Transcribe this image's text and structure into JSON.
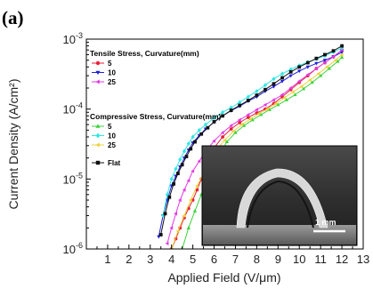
{
  "panel_label": "(a)",
  "inset": {
    "scale_bar_label": "1 mm"
  },
  "chart_data": {
    "type": "scatter",
    "xlabel": "Applied Field (V/μm)",
    "ylabel": "Current Density (A/cm²)",
    "xlim": [
      0,
      13
    ],
    "ylim_log10": [
      -6,
      -3
    ],
    "y_scale": "log",
    "x_ticks": [
      "1",
      "2",
      "3",
      "4",
      "5",
      "6",
      "7",
      "8",
      "9",
      "10",
      "11",
      "12",
      "13"
    ],
    "y_ticks": [
      {
        "base": "10",
        "exp": "-3",
        "log": -3
      },
      {
        "base": "10",
        "exp": "-4",
        "log": -4
      },
      {
        "base": "10",
        "exp": "-5",
        "log": -5
      },
      {
        "base": "10",
        "exp": "-6",
        "log": -6
      }
    ],
    "legend_groups": [
      {
        "title": "Tensile Stress, Curvature(mm)",
        "series_index": [
          0,
          1,
          2
        ]
      },
      {
        "title": "Compressive Stress, Curvature(mm)",
        "series_index": [
          3,
          4,
          5
        ]
      },
      {
        "title": "",
        "series_index": [
          6
        ]
      }
    ],
    "series": [
      {
        "name": "5",
        "color": "#e8203b",
        "marker": "circle",
        "x": [
          4.0,
          4.2,
          4.4,
          4.6,
          4.8,
          5.0,
          5.2,
          5.4,
          5.6,
          5.8,
          6.0,
          6.4,
          6.8,
          7.2,
          7.6,
          8.0,
          8.4,
          8.8,
          9.2,
          9.6,
          10.0,
          10.4,
          10.8,
          11.2,
          11.6,
          12.0
        ],
        "y": [
          1e-06,
          1.4e-06,
          2e-06,
          2.8e-06,
          3.8e-06,
          5e-06,
          7e-06,
          1e-05,
          1.4e-05,
          2e-05,
          2.8e-05,
          4e-05,
          5.2e-05,
          6.4e-05,
          7.6e-05,
          8.8e-05,
          0.0001,
          0.00012,
          0.00015,
          0.00019,
          0.00024,
          0.0003,
          0.00038,
          0.00046,
          0.00056,
          0.0007
        ]
      },
      {
        "name": "10",
        "color": "#1f1fdc",
        "marker": "triangle-down",
        "x": [
          3.4,
          3.6,
          3.8,
          4.0,
          4.2,
          4.4,
          4.6,
          4.8,
          5.0,
          5.3,
          5.6,
          6.0,
          6.4,
          6.8,
          7.2,
          7.6,
          8.0,
          8.4,
          8.8,
          9.2,
          9.6,
          10.0,
          10.4,
          10.8,
          11.2,
          11.6,
          12.0
        ],
        "y": [
          1.5e-06,
          3e-06,
          5e-06,
          8e-06,
          1.1e-05,
          1.5e-05,
          2e-05,
          2.6e-05,
          3.3e-05,
          4.2e-05,
          5.2e-05,
          6.5e-05,
          8e-05,
          9.5e-05,
          0.00011,
          0.00013,
          0.00015,
          0.00018,
          0.00021,
          0.00025,
          0.0003,
          0.00035,
          0.0004,
          0.00045,
          0.0005,
          0.00056,
          0.00065
        ]
      },
      {
        "name": "25",
        "color": "#e23be6",
        "marker": "triangle-left",
        "x": [
          3.8,
          4.0,
          4.2,
          4.4,
          4.6,
          4.8,
          5.0,
          5.3,
          5.6,
          6.0,
          6.4,
          6.8,
          7.2,
          7.6,
          8.0,
          8.4,
          8.8,
          9.2,
          9.6,
          10.0,
          10.4,
          10.8,
          11.2,
          11.6,
          12.0
        ],
        "y": [
          1.2e-06,
          2e-06,
          3.2e-06,
          5e-06,
          7e-06,
          9.5e-06,
          1.3e-05,
          1.8e-05,
          2.5e-05,
          3.5e-05,
          4.6e-05,
          5.8e-05,
          7e-05,
          8.3e-05,
          9.8e-05,
          0.000115,
          0.000135,
          0.00016,
          0.0002,
          0.00025,
          0.00031,
          0.00038,
          0.00046,
          0.00056,
          0.0007
        ]
      },
      {
        "name": "5",
        "color": "#3cd23c",
        "marker": "triangle-up",
        "x": [
          4.5,
          4.8,
          5.1,
          5.4,
          5.7,
          6.0,
          6.3,
          6.6,
          7.0,
          7.4,
          7.8,
          8.2,
          8.6,
          9.0,
          9.4,
          9.8,
          10.2,
          10.6,
          11.0,
          11.4,
          11.8,
          12.0
        ],
        "y": [
          1e-06,
          2e-06,
          3.5e-06,
          6e-06,
          1e-05,
          1.6e-05,
          2.4e-05,
          3.4e-05,
          4.6e-05,
          5.8e-05,
          7e-05,
          8.3e-05,
          9.8e-05,
          0.000115,
          0.000135,
          0.00016,
          0.000195,
          0.00024,
          0.0003,
          0.00038,
          0.00048,
          0.00055
        ]
      },
      {
        "name": "10",
        "color": "#2ee6e6",
        "marker": "diamond",
        "x": [
          3.6,
          3.8,
          4.0,
          4.2,
          4.4,
          4.6,
          4.8,
          5.0,
          5.3,
          5.6,
          6.0,
          6.4,
          6.8,
          7.2,
          7.6,
          8.0,
          8.4,
          8.8,
          9.2,
          9.6,
          10.0,
          10.4,
          10.8,
          11.2,
          11.6,
          12.0
        ],
        "y": [
          3e-06,
          6e-06,
          1e-05,
          1.4e-05,
          1.9e-05,
          2.5e-05,
          3.2e-05,
          4e-05,
          5e-05,
          6e-05,
          7.5e-05,
          9e-05,
          0.000105,
          0.000125,
          0.00015,
          0.00018,
          0.00022,
          0.00027,
          0.00032,
          0.00037,
          0.00042,
          0.00047,
          0.00052,
          0.00058,
          0.00065,
          0.00075
        ]
      },
      {
        "name": "25",
        "color": "#ecd23a",
        "marker": "triangle-left",
        "x": [
          4.0,
          4.3,
          4.6,
          4.9,
          5.2,
          5.5,
          5.8,
          6.1,
          6.5,
          6.9,
          7.3,
          7.7,
          8.1,
          8.5,
          8.9,
          9.3,
          9.7,
          10.1,
          10.5,
          10.9,
          11.3,
          11.7,
          12.0
        ],
        "y": [
          1e-06,
          1.8e-06,
          3e-06,
          5e-06,
          8e-06,
          1.2e-05,
          1.8e-05,
          2.6e-05,
          3.6e-05,
          4.8e-05,
          6e-05,
          7.2e-05,
          8.6e-05,
          0.0001,
          0.00012,
          0.000145,
          0.000175,
          0.00021,
          0.00026,
          0.00032,
          0.0004,
          0.0005,
          0.0006
        ]
      },
      {
        "name": "Flat",
        "color": "#111111",
        "marker": "square",
        "x": [
          3.5,
          3.7,
          3.9,
          4.1,
          4.3,
          4.5,
          4.7,
          4.9,
          5.1,
          5.4,
          5.7,
          6.0,
          6.4,
          6.8,
          7.2,
          7.6,
          8.0,
          8.4,
          8.8,
          9.2,
          9.6,
          10.0,
          10.4,
          10.8,
          11.2,
          11.6,
          12.0
        ],
        "y": [
          1.6e-06,
          3.2e-06,
          5.5e-06,
          8.5e-06,
          1.2e-05,
          1.6e-05,
          2.1e-05,
          2.7e-05,
          3.4e-05,
          4.4e-05,
          5.4e-05,
          6.6e-05,
          8e-05,
          9.6e-05,
          0.000113,
          0.000133,
          0.000158,
          0.00019,
          0.00023,
          0.00028,
          0.00034,
          0.0004,
          0.00046,
          0.00053,
          0.0006,
          0.00068,
          0.0008
        ]
      }
    ]
  }
}
